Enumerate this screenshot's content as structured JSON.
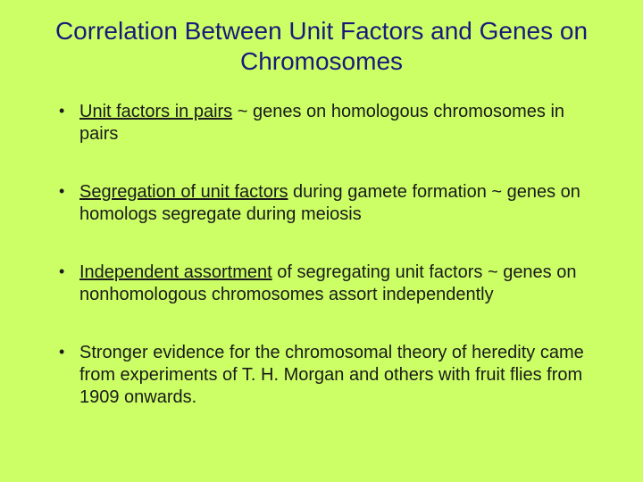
{
  "slide": {
    "title": "Correlation Between Unit Factors and Genes on Chromosomes",
    "background_color": "#ccff66",
    "title_color": "#1a1a7a",
    "title_fontsize": 28,
    "body_fontsize": 20,
    "body_color": "#1a1a1a",
    "bullets": [
      {
        "pre": "",
        "u": "Unit factors in pairs",
        "post": " ~ genes on homologous chromosomes in pairs"
      },
      {
        "pre": "",
        "u": "Segregation of unit factors",
        "post": " during gamete formation ~ genes on homologs segregate during meiosis"
      },
      {
        "pre": "",
        "u": "Independent assortment",
        "post": " of segregating unit factors ~ genes on nonhomologous chromosomes assort independently"
      },
      {
        "pre": "Stronger evidence for the chromosomal theory of heredity came from experiments of T. H. Morgan and others with fruit flies from 1909 onwards.",
        "u": "",
        "post": ""
      }
    ]
  }
}
